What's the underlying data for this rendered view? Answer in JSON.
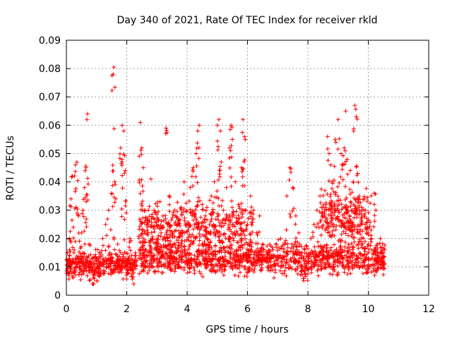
{
  "chart_data": {
    "type": "scatter",
    "title": "Day 340 of 2021, Rate Of TEC Index for receiver rkld",
    "xlabel": "GPS time / hours",
    "ylabel": "ROTI / TECUs",
    "xlim": [
      0,
      12
    ],
    "ylim": [
      0,
      0.09
    ],
    "xticks": [
      0,
      2,
      4,
      6,
      8,
      10,
      12
    ],
    "yticks": [
      0,
      0.01,
      0.02,
      0.03,
      0.04,
      0.05,
      0.06,
      0.07,
      0.08,
      0.09
    ],
    "xtick_labels": [
      "0",
      "2",
      "4",
      "6",
      "8",
      "10",
      "12"
    ],
    "ytick_labels": [
      "0",
      "0.01",
      "0.02",
      "0.03",
      "0.04",
      "0.05",
      "0.06",
      "0.07",
      "0.08",
      "0.09"
    ],
    "grid": true,
    "marker": "+",
    "color": "#ff0000",
    "series": [
      {
        "name": "ROTI",
        "points": [
          [
            0.05,
            0.012
          ],
          [
            0.1,
            0.02
          ],
          [
            0.15,
            0.034
          ],
          [
            0.2,
            0.042
          ],
          [
            0.25,
            0.015
          ],
          [
            0.3,
            0.046
          ],
          [
            0.35,
            0.047
          ],
          [
            0.4,
            0.028
          ],
          [
            0.45,
            0.01
          ],
          [
            0.5,
            0.022
          ],
          [
            0.55,
            0.03
          ],
          [
            0.6,
            0.038
          ],
          [
            0.65,
            0.045
          ],
          [
            0.68,
            0.062
          ],
          [
            0.7,
            0.064
          ],
          [
            0.75,
            0.018
          ],
          [
            0.8,
            0.011
          ],
          [
            0.9,
            0.008
          ],
          [
            1.0,
            0.012
          ],
          [
            1.1,
            0.015
          ],
          [
            1.2,
            0.02
          ],
          [
            1.3,
            0.025
          ],
          [
            1.4,
            0.03
          ],
          [
            1.5,
            0.036
          ],
          [
            1.55,
            0.078
          ],
          [
            1.57,
            0.0805
          ],
          [
            1.6,
            0.04
          ],
          [
            1.7,
            0.018
          ],
          [
            1.8,
            0.052
          ],
          [
            1.85,
            0.06
          ],
          [
            1.9,
            0.058
          ],
          [
            1.95,
            0.044
          ],
          [
            2.0,
            0.012
          ],
          [
            2.1,
            0.02
          ],
          [
            2.2,
            0.009
          ],
          [
            2.3,
            0.014
          ],
          [
            2.45,
            0.061
          ],
          [
            2.5,
            0.052
          ],
          [
            2.55,
            0.045
          ],
          [
            2.6,
            0.03
          ],
          [
            2.7,
            0.025
          ],
          [
            2.8,
            0.041
          ],
          [
            2.9,
            0.03
          ],
          [
            3.0,
            0.02
          ],
          [
            3.1,
            0.033
          ],
          [
            3.2,
            0.028
          ],
          [
            3.3,
            0.059
          ],
          [
            3.4,
            0.035
          ],
          [
            3.5,
            0.022
          ],
          [
            3.6,
            0.018
          ],
          [
            3.7,
            0.027
          ],
          [
            3.8,
            0.031
          ],
          [
            3.9,
            0.04
          ],
          [
            4.0,
            0.025
          ],
          [
            4.1,
            0.038
          ],
          [
            4.2,
            0.045
          ],
          [
            4.3,
            0.05
          ],
          [
            4.35,
            0.058
          ],
          [
            4.4,
            0.06
          ],
          [
            4.5,
            0.032
          ],
          [
            4.6,
            0.028
          ],
          [
            4.7,
            0.022
          ],
          [
            4.8,
            0.035
          ],
          [
            4.9,
            0.04
          ],
          [
            5.0,
            0.06
          ],
          [
            5.05,
            0.062
          ],
          [
            5.1,
            0.058
          ],
          [
            5.2,
            0.03
          ],
          [
            5.3,
            0.038
          ],
          [
            5.4,
            0.052
          ],
          [
            5.45,
            0.06
          ],
          [
            5.5,
            0.055
          ],
          [
            5.6,
            0.04
          ],
          [
            5.7,
            0.032
          ],
          [
            5.8,
            0.045
          ],
          [
            5.85,
            0.062
          ],
          [
            5.9,
            0.056
          ],
          [
            6.0,
            0.025
          ],
          [
            6.1,
            0.035
          ],
          [
            6.2,
            0.03
          ],
          [
            6.3,
            0.022
          ],
          [
            6.4,
            0.028
          ],
          [
            6.5,
            0.018
          ],
          [
            6.7,
            0.015
          ],
          [
            6.9,
            0.012
          ],
          [
            7.1,
            0.02
          ],
          [
            7.3,
            0.035
          ],
          [
            7.4,
            0.045
          ],
          [
            7.5,
            0.038
          ],
          [
            7.6,
            0.028
          ],
          [
            7.7,
            0.022
          ],
          [
            7.8,
            0.015
          ],
          [
            7.9,
            0.01
          ],
          [
            8.0,
            0.012
          ],
          [
            8.1,
            0.02
          ],
          [
            8.2,
            0.025
          ],
          [
            8.3,
            0.03
          ],
          [
            8.4,
            0.035
          ],
          [
            8.5,
            0.028
          ],
          [
            8.6,
            0.032
          ],
          [
            8.65,
            0.056
          ],
          [
            8.7,
            0.05
          ],
          [
            8.75,
            0.046
          ],
          [
            8.8,
            0.04
          ],
          [
            8.9,
            0.055
          ],
          [
            9.0,
            0.062
          ],
          [
            9.1,
            0.05
          ],
          [
            9.2,
            0.052
          ],
          [
            9.25,
            0.065
          ],
          [
            9.3,
            0.048
          ],
          [
            9.4,
            0.044
          ],
          [
            9.5,
            0.04
          ],
          [
            9.55,
            0.067
          ],
          [
            9.6,
            0.063
          ],
          [
            9.65,
            0.043
          ],
          [
            9.7,
            0.035
          ],
          [
            9.8,
            0.03
          ],
          [
            9.9,
            0.025
          ],
          [
            10.0,
            0.022
          ],
          [
            10.1,
            0.02
          ],
          [
            10.2,
            0.036
          ],
          [
            10.25,
            0.03
          ],
          [
            10.3,
            0.018
          ],
          [
            10.4,
            0.02
          ],
          [
            10.5,
            0.015
          ]
        ],
        "dense_band": {
          "segments": [
            {
              "x": [
                0.0,
                2.3
              ],
              "y_mid": 0.011,
              "y_spread": 0.006,
              "count": 360
            },
            {
              "x": [
                2.4,
                10.55
              ],
              "y_mid": 0.013,
              "y_spread": 0.008,
              "count": 1150
            },
            {
              "x": [
                2.4,
                6.2
              ],
              "y_mid": 0.024,
              "y_spread": 0.012,
              "count": 380
            },
            {
              "x": [
                8.4,
                10.1
              ],
              "y_mid": 0.027,
              "y_spread": 0.013,
              "count": 220
            }
          ]
        }
      }
    ]
  }
}
